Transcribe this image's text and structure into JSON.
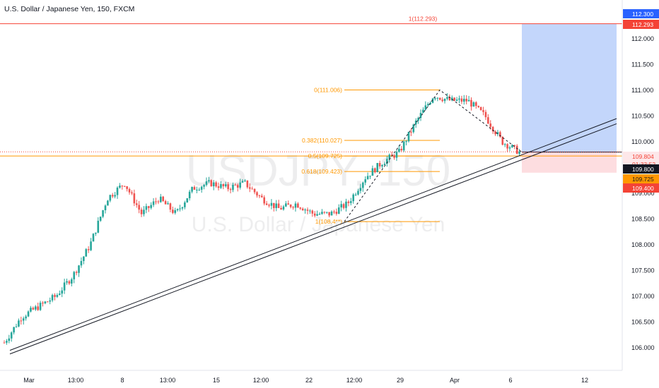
{
  "header": {
    "symbol_title": "U.S. Dollar / Japanese Yen, 150, FXCM"
  },
  "watermark": {
    "symbol": "USDJPY, 150",
    "name": "U.S. Dollar / Japanese Yen"
  },
  "colors": {
    "up_candle": "#26a69a",
    "down_candle": "#ef5350",
    "fib_line": "#ff9800",
    "target_zone": "#bcd2fb",
    "stop_zone": "#fddde0",
    "red_line": "#f44336",
    "blue_badge": "#2962ff",
    "trendline": "#131722"
  },
  "chart_data": {
    "type": "candlestick",
    "timeframe_minutes": 150,
    "ylim": [
      105.8,
      112.4
    ],
    "y_ticks": [
      "112.000",
      "111.500",
      "111.000",
      "110.500",
      "110.000",
      "109.500",
      "109.000",
      "108.500",
      "108.000",
      "107.500",
      "107.000",
      "106.500",
      "106.000"
    ],
    "x_ticks": [
      "Mar",
      "13:00",
      "8",
      "13:00",
      "15",
      "12:00",
      "22",
      "12:00",
      "29",
      "Apr",
      "6",
      "12"
    ],
    "price_path": [
      {
        "d": "Mar 1",
        "p": 106.1
      },
      {
        "d": "Mar 2",
        "p": 106.6
      },
      {
        "d": "Mar 3",
        "p": 106.8
      },
      {
        "d": "Mar 4",
        "p": 107.0
      },
      {
        "d": "Mar 5",
        "p": 107.4
      },
      {
        "d": "Mar 6",
        "p": 108.0
      },
      {
        "d": "Mar 7",
        "p": 108.9
      },
      {
        "d": "Mar 8",
        "p": 109.2
      },
      {
        "d": "Mar 9",
        "p": 108.6
      },
      {
        "d": "Mar 10",
        "p": 108.9
      },
      {
        "d": "Mar 11",
        "p": 108.6
      },
      {
        "d": "Mar 12",
        "p": 109.1
      },
      {
        "d": "Mar 13",
        "p": 109.2
      },
      {
        "d": "Mar 14",
        "p": 109.1
      },
      {
        "d": "Mar 15",
        "p": 109.2
      },
      {
        "d": "Mar 16",
        "p": 108.9
      },
      {
        "d": "Mar 17",
        "p": 108.7
      },
      {
        "d": "Mar 18",
        "p": 108.8
      },
      {
        "d": "Mar 19",
        "p": 108.6
      },
      {
        "d": "Mar 20",
        "p": 108.6
      },
      {
        "d": "Mar 21",
        "p": 108.8
      },
      {
        "d": "Mar 22",
        "p": 109.3
      },
      {
        "d": "Mar 23",
        "p": 109.6
      },
      {
        "d": "Mar 24",
        "p": 109.8
      },
      {
        "d": "Mar 25",
        "p": 110.4
      },
      {
        "d": "Mar 26",
        "p": 110.9
      },
      {
        "d": "Mar 27",
        "p": 110.8
      },
      {
        "d": "Mar 28",
        "p": 110.8
      },
      {
        "d": "Mar 29",
        "p": 110.5
      },
      {
        "d": "Mar 30",
        "p": 110.0
      },
      {
        "d": "Mar 31",
        "p": 109.8
      }
    ],
    "fibonacci": [
      {
        "label": "0(111.006)",
        "price": 111.006
      },
      {
        "label": "0.382(110.027)",
        "price": 110.027
      },
      {
        "label": "0.5(109.725)",
        "price": 109.725
      },
      {
        "label": "0.618(109.423)",
        "price": 109.423
      },
      {
        "label": "1(108.4**)",
        "price": 108.45
      }
    ],
    "target_line": {
      "label": "1(112.293)",
      "price": 112.293
    },
    "price_badges": [
      {
        "id": "upper",
        "text": "112.300",
        "price": 112.3
      },
      {
        "id": "target",
        "text": "112.293",
        "price": 112.293
      },
      {
        "id": "last",
        "text": "109.804",
        "countdown": "01:33:52",
        "price": 109.804
      },
      {
        "id": "entry",
        "text": "109.800",
        "price": 109.8
      },
      {
        "id": "fib05",
        "text": "109.725",
        "price": 109.725
      },
      {
        "id": "stop",
        "text": "109.400",
        "price": 109.4
      }
    ],
    "long_position": {
      "entry": 109.8,
      "target": 112.293,
      "stop": 109.4
    },
    "trendlines": [
      {
        "from_price": 105.95,
        "to_price": 110.45
      },
      {
        "from_price": 105.88,
        "to_price": 110.35
      }
    ],
    "grid": false
  }
}
